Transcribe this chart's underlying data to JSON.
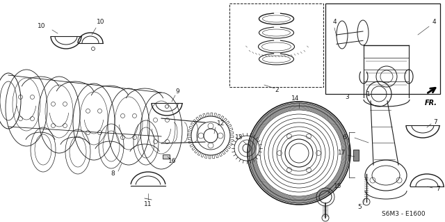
{
  "bg_color": "#ffffff",
  "fig_width": 6.4,
  "fig_height": 3.19,
  "dpi": 100,
  "diagram_code": "S6M3 - E1600",
  "fr_label": "FR.",
  "line_color": "#1a1a1a",
  "font_size_labels": 6.5,
  "font_size_code": 6.5
}
